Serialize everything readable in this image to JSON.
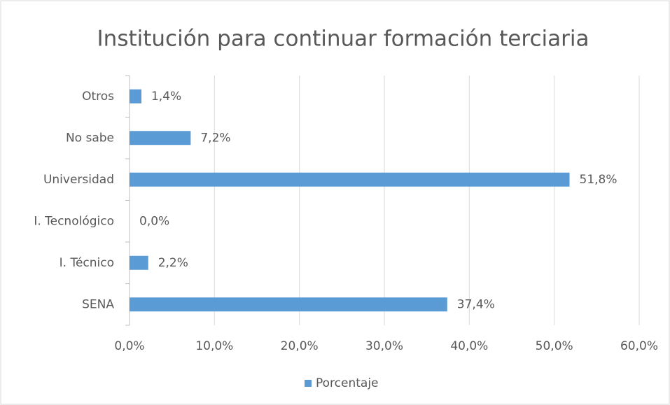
{
  "chart_data": {
    "type": "bar",
    "orientation": "horizontal",
    "title": "Institución para continuar formación terciaria",
    "categories": [
      "Otros",
      "No sabe",
      "Universidad",
      "I. Tecnológico",
      "I. Técnico",
      "SENA"
    ],
    "series": [
      {
        "name": "Porcentaje",
        "color": "#5b9bd5",
        "values": [
          1.4,
          7.2,
          51.8,
          0,
          2.2,
          37.4
        ],
        "value_labels": [
          "1,4%",
          "7,2%",
          "51,8%",
          "0,0%",
          "2,2%",
          "37,4%"
        ]
      }
    ],
    "xlim": [
      0,
      60
    ],
    "xticks": [
      {
        "value": 0,
        "label": "0,0%"
      },
      {
        "value": 10,
        "label": "10,0%"
      },
      {
        "value": 20,
        "label": "20,0%"
      },
      {
        "value": 30,
        "label": "30,0%"
      },
      {
        "value": 40,
        "label": "40,0%"
      },
      {
        "value": 50,
        "label": "50,0%"
      },
      {
        "value": 60,
        "label": "60,0%"
      }
    ],
    "grid": true,
    "legend": "bottom"
  }
}
